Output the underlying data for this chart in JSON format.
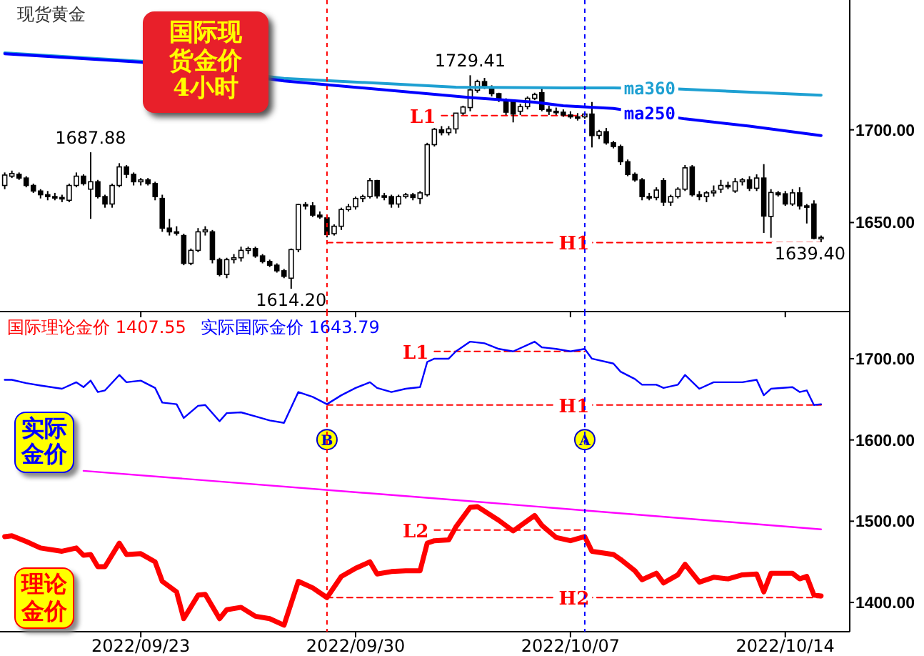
{
  "chart_data": [
    {
      "type": "candlestick",
      "title": "现货黄金",
      "categories": [
        null,
        null,
        null,
        null,
        null,
        null,
        null,
        null,
        null,
        null,
        null,
        null,
        null,
        null,
        null,
        null,
        null,
        null,
        null,
        "2022/09/23",
        null,
        null,
        null,
        null,
        null,
        null,
        null,
        null,
        null,
        null,
        null,
        null,
        null,
        null,
        null,
        null,
        null,
        null,
        null,
        null,
        null,
        null,
        null,
        null,
        null,
        null,
        null,
        null,
        null,
        "2022/09/30",
        null,
        null,
        null,
        null,
        null,
        null,
        null,
        null,
        null,
        null,
        null,
        null,
        null,
        null,
        null,
        null,
        null,
        null,
        null,
        null,
        null,
        null,
        null,
        null,
        null,
        null,
        null,
        null,
        null,
        "2022/10/07",
        null,
        null,
        null,
        null,
        null,
        null,
        null,
        null,
        null,
        null,
        null,
        null,
        null,
        null,
        null,
        null,
        null,
        null,
        null,
        null,
        null,
        null,
        null,
        null,
        null,
        null,
        null,
        null,
        null,
        "2022/10/14",
        null,
        null,
        null,
        null,
        null
      ],
      "ohlc": [
        [
          1670,
          1677,
          1668,
          1675.6
        ],
        [
          1675,
          1678,
          1674,
          1676.4
        ],
        [
          1676,
          1677,
          1673,
          1674
        ],
        [
          1674,
          1675,
          1669,
          1670
        ],
        [
          1670,
          1671,
          1666,
          1667
        ],
        [
          1667,
          1668,
          1663,
          1665
        ],
        [
          1665,
          1667,
          1662,
          1664
        ],
        [
          1664,
          1666,
          1662,
          1663.5
        ],
        [
          1663.5,
          1665,
          1661,
          1662.8
        ],
        [
          1662,
          1671,
          1661,
          1670
        ],
        [
          1670,
          1677,
          1669,
          1675
        ],
        [
          1675,
          1676,
          1670,
          1671
        ],
        [
          1668,
          1687.88,
          1652,
          1672
        ],
        [
          1672,
          1673,
          1663,
          1664
        ],
        [
          1664,
          1665,
          1658,
          1660
        ],
        [
          1660,
          1671,
          1658,
          1670
        ],
        [
          1670,
          1682,
          1669,
          1680
        ],
        [
          1680,
          1681,
          1674,
          1676
        ],
        [
          1676,
          1677,
          1670,
          1672
        ],
        [
          1672,
          1674,
          1670,
          1673
        ],
        [
          1673,
          1674,
          1670,
          1671
        ],
        [
          1671,
          1672,
          1662,
          1664
        ],
        [
          1663,
          1665,
          1645,
          1647
        ],
        [
          1647,
          1652,
          1643,
          1645
        ],
        [
          1645,
          1648,
          1643,
          1644.5
        ],
        [
          1643,
          1644,
          1627,
          1628
        ],
        [
          1628,
          1636,
          1627,
          1635
        ],
        [
          1635,
          1647,
          1634,
          1645
        ],
        [
          1645,
          1648,
          1643,
          1646
        ],
        [
          1645,
          1646,
          1628,
          1630
        ],
        [
          1630,
          1631,
          1621,
          1622
        ],
        [
          1622,
          1631,
          1620,
          1630
        ],
        [
          1630,
          1633,
          1628,
          1631
        ],
        [
          1631,
          1637,
          1629,
          1635
        ],
        [
          1635,
          1637,
          1633,
          1636
        ],
        [
          1636,
          1637,
          1631,
          1632
        ],
        [
          1632,
          1633,
          1628,
          1629
        ],
        [
          1629,
          1630,
          1626,
          1627
        ],
        [
          1627,
          1628,
          1623,
          1624
        ],
        [
          1624,
          1625,
          1620,
          1621
        ],
        [
          1620,
          1636,
          1614.2,
          1635.4
        ],
        [
          1635.4,
          1660,
          1634,
          1659.7
        ],
        [
          1659.7,
          1661,
          1657,
          1659
        ],
        [
          1659,
          1661,
          1653,
          1654
        ],
        [
          1654,
          1656,
          1652,
          1653
        ],
        [
          1652.5,
          1654,
          1642,
          1643.5
        ],
        [
          1644,
          1649,
          1643,
          1648
        ],
        [
          1648,
          1658,
          1646,
          1657
        ],
        [
          1657,
          1660,
          1656,
          1658.5
        ],
        [
          1658.5,
          1664,
          1657,
          1663
        ],
        [
          1663,
          1665,
          1661,
          1664
        ],
        [
          1664,
          1674,
          1663,
          1672.6
        ],
        [
          1672.6,
          1673,
          1663,
          1664.4
        ],
        [
          1664.4,
          1666,
          1662,
          1664
        ],
        [
          1664,
          1665,
          1658,
          1660
        ],
        [
          1660,
          1665,
          1658,
          1664
        ],
        [
          1664,
          1666,
          1663,
          1665
        ],
        [
          1665,
          1666,
          1662,
          1663.5
        ],
        [
          1663,
          1667,
          1660,
          1666
        ],
        [
          1665,
          1693,
          1664,
          1692
        ],
        [
          1692,
          1701,
          1691,
          1700.3
        ],
        [
          1700,
          1702,
          1697,
          1698.5
        ],
        [
          1698.5,
          1702,
          1697,
          1700.5
        ],
        [
          1700.5,
          1709,
          1698,
          1709
        ],
        [
          1709,
          1713,
          1708,
          1712.3
        ],
        [
          1712,
          1729.41,
          1710,
          1721.5
        ],
        [
          1721.3,
          1727,
          1720,
          1726
        ],
        [
          1726,
          1728,
          1722,
          1723
        ],
        [
          1723,
          1724,
          1718,
          1719.5
        ],
        [
          1719.5,
          1720,
          1715,
          1716
        ],
        [
          1716,
          1717,
          1708,
          1709.5
        ],
        [
          1715,
          1716,
          1704,
          1708.5
        ],
        [
          1710,
          1714,
          1708,
          1712.5
        ],
        [
          1712.5,
          1718,
          1711,
          1717
        ],
        [
          1717,
          1720,
          1716,
          1719
        ],
        [
          1720,
          1723,
          1710,
          1711
        ],
        [
          1711,
          1713,
          1708,
          1710
        ],
        [
          1710,
          1712,
          1708,
          1709.5
        ],
        [
          1709.5,
          1711,
          1707,
          1708
        ],
        [
          1708,
          1710,
          1706,
          1707
        ],
        [
          1707,
          1709,
          1705,
          1706.5
        ],
        [
          1707,
          1710,
          1706,
          1708.5
        ],
        [
          1708.5,
          1715,
          1690.5,
          1696.9
        ],
        [
          1697,
          1700,
          1695,
          1699
        ],
        [
          1699,
          1701,
          1692,
          1693
        ],
        [
          1693,
          1694,
          1690,
          1691
        ],
        [
          1691,
          1692,
          1681,
          1682.8
        ],
        [
          1682.8,
          1684,
          1675,
          1675.9
        ],
        [
          1676,
          1677,
          1672,
          1673
        ],
        [
          1673,
          1674,
          1662,
          1664
        ],
        [
          1664,
          1666,
          1662,
          1663.5
        ],
        [
          1663.5,
          1669,
          1662,
          1667.5
        ],
        [
          1672.6,
          1674,
          1659,
          1661
        ],
        [
          1661,
          1665,
          1659,
          1664
        ],
        [
          1664,
          1669,
          1663,
          1668
        ],
        [
          1668,
          1681,
          1667,
          1679.5
        ],
        [
          1680,
          1681,
          1664,
          1665
        ],
        [
          1665,
          1667,
          1662,
          1664
        ],
        [
          1664,
          1667,
          1661,
          1666
        ],
        [
          1666,
          1670,
          1664,
          1667
        ],
        [
          1668,
          1673,
          1666,
          1670
        ],
        [
          1670,
          1672,
          1668,
          1669.5
        ],
        [
          1667,
          1674,
          1666,
          1672
        ],
        [
          1672,
          1674,
          1670,
          1673
        ],
        [
          1673,
          1675,
          1667,
          1668.5
        ],
        [
          1668.5,
          1676,
          1667,
          1674
        ],
        [
          1674,
          1681.5,
          1644.4,
          1653.5
        ],
        [
          1653.3,
          1668,
          1641.8,
          1666.2
        ],
        [
          1666,
          1667,
          1664,
          1665
        ],
        [
          1665.5,
          1667,
          1659,
          1660
        ],
        [
          1660,
          1668,
          1659,
          1666
        ],
        [
          1666,
          1669,
          1657,
          1659
        ],
        [
          1659,
          1660,
          1649.5,
          1658.5
        ],
        [
          1660,
          1662,
          1641,
          1641.5
        ],
        [
          1641.5,
          1643,
          1639.4,
          1642
        ]
      ],
      "series": [
        {
          "name": "ma360",
          "type": "line",
          "color": "#1ea0d2",
          "values": [
            1741.5,
            null,
            null,
            null,
            null,
            null,
            null,
            null,
            null,
            null,
            null,
            null,
            null,
            null,
            null,
            null,
            null,
            null,
            null,
            1737,
            null,
            null,
            null,
            null,
            null,
            null,
            null,
            null,
            null,
            null,
            null,
            null,
            null,
            null,
            null,
            null,
            null,
            null,
            null,
            1727.7,
            null,
            null,
            null,
            null,
            null,
            null,
            null,
            null,
            null,
            null,
            null,
            null,
            null,
            null,
            null,
            null,
            null,
            null,
            null,
            null,
            null,
            null,
            null,
            1723,
            null,
            null,
            null,
            null,
            null,
            null,
            null,
            null,
            null,
            null,
            null,
            null,
            null,
            null,
            1722.6,
            null,
            null,
            null,
            null,
            null,
            null,
            1722.6,
            null,
            null,
            null,
            null,
            null,
            null,
            null,
            null,
            1722,
            null,
            null,
            null,
            null,
            null,
            null,
            null,
            null,
            null,
            null,
            null,
            null,
            null,
            null,
            null,
            null,
            null,
            null,
            null,
            1718.7
          ]
        },
        {
          "name": "ma250",
          "type": "line",
          "color": "#0000ff",
          "values": [
            1741,
            null,
            null,
            null,
            null,
            null,
            null,
            null,
            null,
            null,
            null,
            null,
            null,
            null,
            null,
            null,
            null,
            null,
            null,
            1736.5,
            null,
            null,
            null,
            null,
            null,
            null,
            null,
            null,
            null,
            null,
            null,
            null,
            null,
            null,
            null,
            null,
            null,
            null,
            null,
            1726.4,
            null,
            null,
            null,
            null,
            null,
            null,
            null,
            null,
            null,
            null,
            null,
            null,
            null,
            null,
            null,
            null,
            null,
            null,
            null,
            null,
            null,
            null,
            null,
            null,
            null,
            1717.4,
            null,
            null,
            null,
            null,
            null,
            null,
            null,
            null,
            1714.9,
            null,
            null,
            null,
            1713,
            null,
            null,
            null,
            null,
            null,
            null,
            1711.5,
            null,
            null,
            null,
            null,
            null,
            null,
            null,
            null,
            null,
            1705.9,
            null,
            null,
            null,
            null,
            null,
            null,
            null,
            null,
            1702,
            null,
            null,
            null,
            null,
            null,
            null,
            null,
            null,
            null,
            1696.9
          ]
        },
        {
          "type": "line",
          "color": "#ff0000",
          "line_style": "dashed",
          "values": [
            null,
            null,
            null,
            null,
            null,
            null,
            null,
            null,
            null,
            null,
            null,
            null,
            null,
            null,
            null,
            null,
            null,
            null,
            null,
            null,
            null,
            null,
            null,
            null,
            null,
            null,
            null,
            null,
            null,
            null,
            null,
            null,
            null,
            null,
            null,
            null,
            null,
            null,
            null,
            null,
            null,
            null,
            null,
            null,
            null,
            null,
            null,
            null,
            null,
            null,
            null,
            null,
            null,
            null,
            null,
            null,
            null,
            null,
            null,
            null,
            null,
            1707.7,
            null,
            null,
            null,
            null,
            null,
            null,
            null,
            null,
            null,
            null,
            null,
            null,
            null,
            null,
            null,
            null,
            null,
            null,
            null,
            1707.7,
            null,
            null,
            null,
            null,
            null,
            null,
            null,
            null,
            null,
            null,
            null,
            null,
            null,
            null,
            null,
            null,
            null,
            null,
            null,
            null,
            null,
            null,
            null,
            null,
            null,
            null,
            null,
            null,
            null,
            null,
            null,
            null,
            null
          ]
        },
        {
          "type": "line",
          "color": "#ff0000",
          "line_style": "dashed",
          "values": [
            null,
            null,
            null,
            null,
            null,
            null,
            null,
            null,
            null,
            null,
            null,
            null,
            null,
            null,
            null,
            null,
            null,
            null,
            null,
            null,
            null,
            null,
            null,
            null,
            null,
            null,
            null,
            null,
            null,
            null,
            null,
            null,
            null,
            null,
            null,
            null,
            null,
            null,
            null,
            null,
            null,
            null,
            null,
            null,
            null,
            1639.2,
            null,
            null,
            null,
            null,
            null,
            null,
            null,
            null,
            null,
            null,
            null,
            null,
            null,
            null,
            null,
            null,
            null,
            null,
            null,
            null,
            null,
            null,
            null,
            null,
            null,
            null,
            null,
            null,
            null,
            null,
            null,
            null,
            null,
            null,
            null,
            null,
            null,
            null,
            null,
            null,
            null,
            null,
            null,
            null,
            null,
            null,
            null,
            null,
            null,
            null,
            null,
            null,
            null,
            null,
            null,
            null,
            null,
            null,
            null,
            null,
            null,
            null,
            null,
            null,
            null,
            null,
            null,
            null,
            1639.2
          ]
        }
      ],
      "annotations": [
        "国际现货金价 4小时",
        {
          "text": "1687.88",
          "y": 1687.88
        },
        {
          "text": "1614.20",
          "y": 1614.2
        },
        {
          "text": "1729.41",
          "y": 1729.41
        },
        {
          "text": "1639.40",
          "y": 1639.4
        },
        {
          "text": "L1",
          "y": 1707.7
        },
        {
          "text": "H1",
          "y": 1639.2
        }
      ],
      "ylim": [
        1602,
        1770
      ],
      "yticks": [
        {
          "value": 1650,
          "label": "1650.00"
        },
        {
          "value": 1700,
          "label": "1700.00"
        }
      ],
      "tick_labels": "y"
    },
    {
      "type": "line",
      "categories": [
        null,
        null,
        null,
        null,
        null,
        null,
        null,
        null,
        null,
        null,
        null,
        null,
        null,
        null,
        null,
        null,
        null,
        null,
        null,
        "2022/09/23",
        null,
        null,
        null,
        null,
        null,
        null,
        null,
        null,
        null,
        null,
        null,
        null,
        null,
        null,
        null,
        null,
        null,
        null,
        null,
        null,
        null,
        null,
        null,
        null,
        null,
        null,
        null,
        null,
        null,
        "2022/09/30",
        null,
        null,
        null,
        null,
        null,
        null,
        null,
        null,
        null,
        null,
        null,
        null,
        null,
        null,
        null,
        null,
        null,
        null,
        null,
        null,
        null,
        null,
        null,
        null,
        null,
        null,
        null,
        null,
        null,
        "2022/10/07",
        null,
        null,
        null,
        null,
        null,
        null,
        null,
        null,
        null,
        null,
        null,
        null,
        null,
        null,
        null,
        null,
        null,
        null,
        null,
        null,
        null,
        null,
        null,
        null,
        null,
        null,
        null,
        null,
        null,
        "2022/10/14",
        null,
        null,
        null,
        null,
        null
      ],
      "series": [
        {
          "name": "国际理论金价",
          "color": "#ff0000",
          "values": [
            1481,
            1482,
            null,
            1475,
            null,
            1467,
            null,
            null,
            1463,
            null,
            1467,
            1458,
            1459,
            1444,
            1444,
            null,
            1473,
            1459,
            null,
            1460,
            null,
            1450,
            1426,
            null,
            1413,
            1380,
            null,
            1409,
            1410,
            null,
            1380,
            1391,
            null,
            1394,
            null,
            1383,
            null,
            1380,
            null,
            1372,
            null,
            1426,
            null,
            1418,
            null,
            1406,
            null,
            1432,
            null,
            1442,
            null,
            1450,
            1435,
            null,
            1438,
            null,
            1439,
            null,
            1439,
            1473,
            1476,
            null,
            1477,
            1493,
            null,
            1517,
            1518,
            null,
            null,
            1501,
            null,
            1488,
            null,
            null,
            1507,
            1495,
            null,
            1480,
            null,
            1476,
            null,
            1481,
            1463,
            null,
            null,
            1459,
            1453,
            null,
            1439,
            1428,
            null,
            1436,
            1424,
            null,
            1434,
            1447,
            null,
            1425,
            null,
            1431,
            null,
            1429,
            null,
            1434,
            null,
            1435,
            1413,
            1436,
            null,
            null,
            1436,
            1429,
            1432,
            1409,
            1408
          ]
        },
        {
          "name": "实际国际金价",
          "color": "#0000ff",
          "values": [
            1674,
            1674,
            null,
            1670,
            null,
            1667,
            null,
            null,
            1663,
            null,
            1671,
            1665,
            1673,
            1659,
            1661,
            null,
            1680,
            1671,
            null,
            1673,
            null,
            1664,
            1646,
            null,
            1644,
            1627,
            null,
            1642,
            1643,
            null,
            1623,
            1633,
            null,
            1634,
            null,
            1629,
            null,
            1624,
            null,
            1621,
            null,
            1659,
            null,
            1653,
            null,
            1644,
            null,
            1655,
            null,
            1664,
            null,
            1671,
            1664,
            null,
            1659,
            null,
            1663,
            null,
            1665,
            1696,
            1700,
            null,
            1700,
            1709,
            null,
            1721,
            null,
            1719,
            null,
            1712,
            null,
            1709,
            null,
            null,
            1721,
            1714,
            null,
            1712,
            null,
            1709,
            null,
            1712,
            1700,
            null,
            null,
            1694,
            1684,
            null,
            1675,
            1668,
            null,
            1668,
            1664,
            null,
            1668,
            1680,
            null,
            1663,
            null,
            1671,
            null,
            null,
            null,
            1671,
            null,
            1674,
            1655,
            1663,
            null,
            null,
            1665,
            1659,
            1661,
            1643,
            1644
          ]
        },
        {
          "color": "#ff00ff",
          "values": [
            null,
            null,
            null,
            null,
            null,
            null,
            null,
            null,
            null,
            null,
            null,
            1562,
            null,
            null,
            null,
            null,
            null,
            null,
            null,
            null,
            null,
            null,
            null,
            null,
            null,
            null,
            null,
            null,
            null,
            null,
            null,
            null,
            null,
            null,
            null,
            null,
            null,
            null,
            null,
            null,
            null,
            null,
            null,
            null,
            null,
            null,
            null,
            null,
            null,
            null,
            null,
            null,
            null,
            null,
            null,
            null,
            null,
            null,
            null,
            null,
            null,
            null,
            null,
            1526,
            null,
            null,
            null,
            null,
            null,
            null,
            null,
            null,
            null,
            null,
            null,
            null,
            null,
            null,
            null,
            null,
            null,
            null,
            null,
            null,
            null,
            null,
            null,
            null,
            null,
            null,
            null,
            null,
            null,
            null,
            null,
            null,
            null,
            null,
            null,
            null,
            null,
            null,
            null,
            null,
            null,
            null,
            null,
            null,
            null,
            null,
            null,
            null,
            null,
            null,
            1490
          ]
        },
        {
          "color": "#ff0000",
          "line_style": "dashed",
          "values": [
            null,
            null,
            null,
            null,
            null,
            null,
            null,
            null,
            null,
            null,
            null,
            null,
            null,
            null,
            null,
            null,
            null,
            null,
            null,
            null,
            null,
            null,
            null,
            null,
            null,
            null,
            null,
            null,
            null,
            null,
            null,
            null,
            null,
            null,
            null,
            null,
            null,
            null,
            null,
            null,
            null,
            null,
            null,
            null,
            null,
            null,
            null,
            null,
            null,
            null,
            null,
            null,
            null,
            null,
            null,
            null,
            null,
            null,
            null,
            null,
            1709,
            null,
            null,
            null,
            null,
            null,
            null,
            null,
            null,
            null,
            null,
            null,
            null,
            null,
            null,
            null,
            null,
            null,
            null,
            null,
            null,
            1709,
            null,
            null,
            null,
            null,
            null,
            null,
            null,
            null,
            null,
            null,
            null,
            null,
            null,
            null,
            null,
            null,
            null,
            null,
            null,
            null,
            null,
            null,
            null,
            null,
            null,
            null,
            null,
            null,
            null,
            null,
            null,
            null,
            null
          ]
        },
        {
          "color": "#ff0000",
          "line_style": "dashed",
          "values": [
            null,
            null,
            null,
            null,
            null,
            null,
            null,
            null,
            null,
            null,
            null,
            null,
            null,
            null,
            null,
            null,
            null,
            null,
            null,
            null,
            null,
            null,
            null,
            null,
            null,
            null,
            null,
            null,
            null,
            null,
            null,
            null,
            null,
            null,
            null,
            null,
            null,
            null,
            null,
            null,
            null,
            null,
            null,
            null,
            null,
            1643,
            null,
            null,
            null,
            null,
            null,
            null,
            null,
            null,
            null,
            null,
            null,
            null,
            null,
            null,
            null,
            null,
            null,
            null,
            null,
            null,
            null,
            null,
            null,
            null,
            null,
            null,
            null,
            null,
            null,
            null,
            null,
            null,
            null,
            null,
            null,
            null,
            null,
            null,
            null,
            null,
            null,
            null,
            null,
            null,
            null,
            null,
            null,
            null,
            null,
            null,
            null,
            null,
            null,
            null,
            null,
            null,
            null,
            null,
            null,
            null,
            null,
            null,
            null,
            null,
            null,
            null,
            null,
            null,
            1643
          ]
        },
        {
          "color": "#ff0000",
          "line_style": "dashed",
          "values": [
            null,
            null,
            null,
            null,
            null,
            null,
            null,
            null,
            null,
            null,
            null,
            null,
            null,
            null,
            null,
            null,
            null,
            null,
            null,
            null,
            null,
            null,
            null,
            null,
            null,
            null,
            null,
            null,
            null,
            null,
            null,
            null,
            null,
            null,
            null,
            null,
            null,
            null,
            null,
            null,
            null,
            null,
            null,
            null,
            null,
            null,
            null,
            null,
            null,
            null,
            null,
            null,
            null,
            null,
            null,
            null,
            null,
            null,
            null,
            null,
            1489,
            null,
            null,
            null,
            null,
            null,
            null,
            null,
            null,
            null,
            null,
            null,
            null,
            null,
            null,
            null,
            null,
            null,
            null,
            null,
            null,
            1489,
            null,
            null,
            null,
            null,
            null,
            null,
            null,
            null,
            null,
            null,
            null,
            null,
            null,
            null,
            null,
            null,
            null,
            null,
            null,
            null,
            null,
            null,
            null,
            null,
            null,
            null,
            null,
            null,
            null,
            null,
            null,
            null,
            null
          ]
        },
        {
          "color": "#ff0000",
          "line_style": "dashed",
          "values": [
            null,
            null,
            null,
            null,
            null,
            null,
            null,
            null,
            null,
            null,
            null,
            null,
            null,
            null,
            null,
            null,
            null,
            null,
            null,
            null,
            null,
            null,
            null,
            null,
            null,
            null,
            null,
            null,
            null,
            null,
            null,
            null,
            null,
            null,
            null,
            null,
            null,
            null,
            null,
            null,
            null,
            null,
            null,
            null,
            null,
            1406,
            null,
            null,
            null,
            null,
            null,
            null,
            null,
            null,
            null,
            null,
            null,
            null,
            null,
            null,
            null,
            null,
            null,
            null,
            null,
            null,
            null,
            null,
            null,
            null,
            null,
            null,
            null,
            null,
            null,
            null,
            null,
            null,
            null,
            null,
            null,
            null,
            null,
            null,
            null,
            null,
            null,
            null,
            null,
            null,
            null,
            null,
            null,
            null,
            null,
            null,
            null,
            null,
            null,
            null,
            null,
            null,
            null,
            null,
            null,
            null,
            null,
            null,
            null,
            null,
            null,
            null,
            null,
            null,
            1406
          ]
        }
      ],
      "annotations": [
        "1407.55",
        "1643.79",
        "理论金价",
        "实际金价",
        "B",
        "A",
        {
          "text": "L1",
          "y": 1709
        },
        {
          "text": "H1",
          "y": 1643
        },
        {
          "text": "L2",
          "y": 1489
        },
        {
          "text": "H2",
          "y": 1406
        }
      ],
      "ylim": [
        1364,
        1758
      ],
      "yticks": [
        {
          "value": 1400,
          "label": "1400.00"
        },
        {
          "value": 1500,
          "label": "1500.00"
        },
        {
          "value": 1600,
          "label": "1600.00"
        },
        {
          "value": 1700,
          "label": "1700.00"
        }
      ]
    }
  ]
}
